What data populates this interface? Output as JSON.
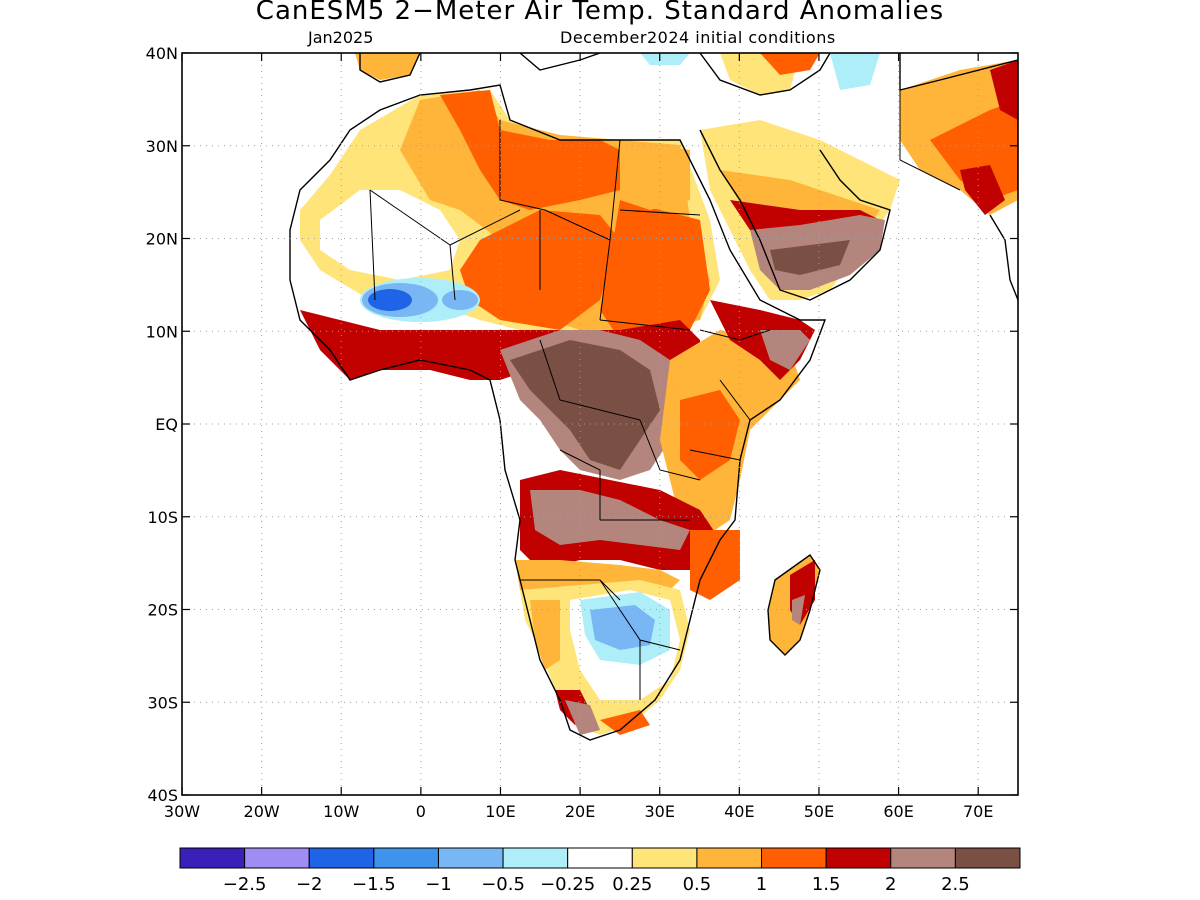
{
  "title": "CanESM5 2−Meter Air Temp. Standard Anomalies",
  "subtitle_left": "Jan2025",
  "subtitle_right": "December2024 initial conditions",
  "map": {
    "lon_range": [
      -30,
      75
    ],
    "lat_range": [
      -40,
      40
    ],
    "lon_ticks": [
      {
        "v": -30,
        "label": "30W"
      },
      {
        "v": -20,
        "label": "20W"
      },
      {
        "v": -10,
        "label": "10W"
      },
      {
        "v": 0,
        "label": "0"
      },
      {
        "v": 10,
        "label": "10E"
      },
      {
        "v": 20,
        "label": "20E"
      },
      {
        "v": 30,
        "label": "30E"
      },
      {
        "v": 40,
        "label": "40E"
      },
      {
        "v": 50,
        "label": "50E"
      },
      {
        "v": 60,
        "label": "60E"
      },
      {
        "v": 70,
        "label": "70E"
      }
    ],
    "lat_ticks": [
      {
        "v": 40,
        "label": "40N"
      },
      {
        "v": 30,
        "label": "30N"
      },
      {
        "v": 20,
        "label": "20N"
      },
      {
        "v": 10,
        "label": "10N"
      },
      {
        "v": 0,
        "label": "EQ"
      },
      {
        "v": -10,
        "label": "10S"
      },
      {
        "v": -20,
        "label": "20S"
      },
      {
        "v": -30,
        "label": "30S"
      },
      {
        "v": -40,
        "label": "40S"
      }
    ],
    "grid": true
  },
  "colorbar": {
    "colors": [
      "#3a1fb8",
      "#9f8cf5",
      "#1f63e6",
      "#3e93ec",
      "#78b6f4",
      "#aeeef8",
      "#ffffff",
      "#ffe47a",
      "#ffb53a",
      "#ff5f00",
      "#c10000",
      "#b3857c",
      "#7b5044"
    ],
    "labels": [
      "−2.5",
      "−2",
      "−1.5",
      "−1",
      "−0.5",
      "−0.25",
      "0.25",
      "0.5",
      "1",
      "1.5",
      "2",
      "2.5"
    ]
  }
}
